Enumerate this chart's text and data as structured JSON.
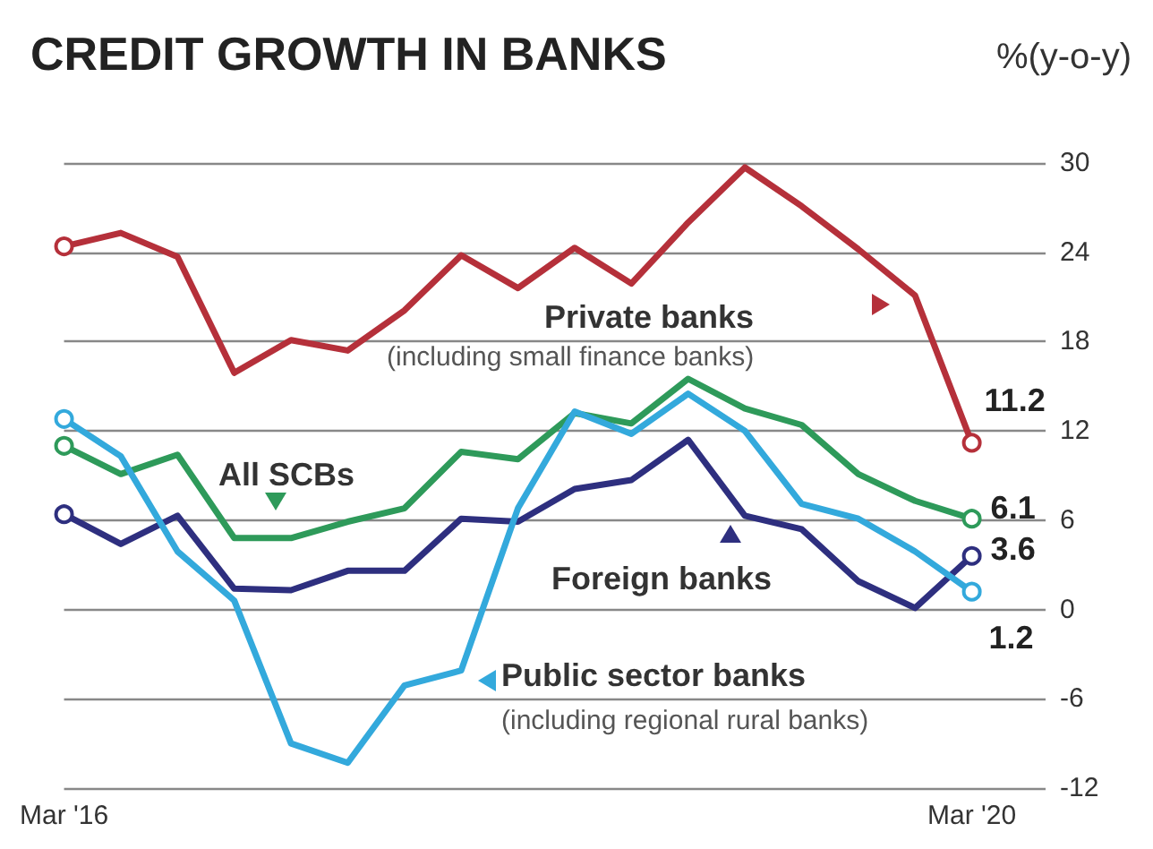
{
  "chart_data": {
    "type": "line",
    "title": "CREDIT GROWTH IN BANKS",
    "ylabel": "%(y-o-y)",
    "categories": [
      "Mar '16",
      null,
      null,
      null,
      null,
      null,
      null,
      null,
      null,
      null,
      null,
      null,
      null,
      null,
      null,
      null,
      "Mar '20"
    ],
    "series": [
      {
        "name": "Private banks",
        "color": "#b5303a",
        "values": [
          24.4,
          25.3,
          23.7,
          15.9,
          18.1,
          17.4,
          20.1,
          23.8,
          21.6,
          24.3,
          21.9,
          26.0,
          29.7,
          27.1,
          24.2,
          21.1,
          11.2
        ],
        "value_labels": [
          null,
          null,
          null,
          null,
          null,
          null,
          null,
          null,
          null,
          null,
          null,
          null,
          null,
          null,
          null,
          null,
          "11.2"
        ]
      },
      {
        "name": "All SCBs",
        "color": "#2e9a5a",
        "values": [
          11.0,
          9.1,
          10.4,
          4.8,
          4.8,
          5.9,
          6.8,
          10.6,
          10.1,
          13.2,
          12.5,
          15.5,
          13.5,
          12.4,
          9.1,
          7.3,
          6.1
        ],
        "value_labels": [
          null,
          null,
          null,
          null,
          null,
          null,
          null,
          null,
          null,
          null,
          null,
          null,
          null,
          null,
          null,
          null,
          "6.1"
        ]
      },
      {
        "name": "Foreign banks",
        "color": "#2e2f7f",
        "values": [
          6.4,
          4.4,
          6.3,
          1.4,
          1.3,
          2.6,
          2.6,
          6.1,
          5.9,
          8.1,
          8.7,
          11.4,
          6.3,
          5.4,
          1.9,
          0.1,
          3.6
        ],
        "value_labels": [
          null,
          null,
          null,
          null,
          null,
          null,
          null,
          null,
          null,
          null,
          null,
          null,
          null,
          null,
          null,
          null,
          "3.6"
        ]
      },
      {
        "name": "Public sector banks",
        "color": "#33a9dc",
        "values": [
          12.8,
          10.3,
          3.9,
          0.6,
          -9.0,
          -10.3,
          -5.1,
          -4.1,
          6.8,
          13.3,
          11.8,
          14.5,
          12.0,
          7.1,
          6.1,
          3.9,
          1.2
        ],
        "value_labels": [
          null,
          null,
          null,
          null,
          null,
          null,
          null,
          null,
          null,
          null,
          null,
          null,
          null,
          null,
          null,
          null,
          "1.2"
        ]
      }
    ],
    "annotations": [
      "(including small finance banks)",
      "(including regional rural banks)"
    ],
    "ylim": [
      -12,
      30
    ],
    "yticks": [
      -12,
      -6,
      0,
      6,
      12,
      18,
      24,
      30
    ],
    "grid": "y"
  }
}
